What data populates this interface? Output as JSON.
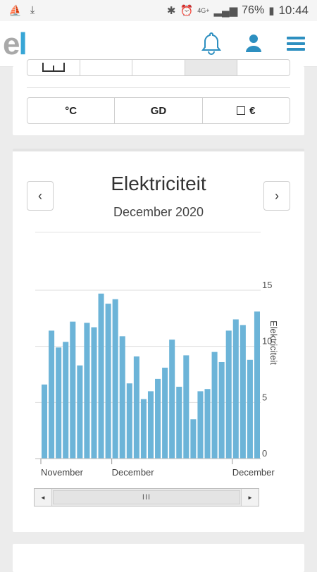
{
  "status": {
    "time": "10:44",
    "battery": "76%",
    "network": "4G+"
  },
  "logo": {
    "e": "e",
    "l": "l"
  },
  "appbar": {
    "icons": [
      "bell-icon",
      "user-icon",
      "menu-icon"
    ]
  },
  "period_buttons": [
    "",
    "",
    "",
    "",
    ""
  ],
  "unit_buttons": {
    "celsius": "°C",
    "gd": "GD",
    "euro": "€"
  },
  "chart_panel": {
    "title": "Elektriciteit",
    "subtitle": "December 2020"
  },
  "chart_data": {
    "type": "bar",
    "ylabel": "Elektriciteit",
    "ylim": [
      0,
      15
    ],
    "yticks": [
      0,
      5,
      10,
      15
    ],
    "xticks": [
      {
        "label": "November",
        "index": 0
      },
      {
        "label": "December",
        "index": 10
      },
      {
        "label": "December",
        "index": 27
      }
    ],
    "values": [
      6.6,
      11.4,
      9.9,
      10.4,
      12.2,
      8.3,
      12.1,
      11.7,
      14.7,
      13.8,
      14.2,
      10.9,
      6.7,
      9.1,
      5.3,
      6.0,
      7.1,
      8.1,
      10.6,
      6.4,
      9.2,
      3.5,
      6.0,
      6.2,
      9.5,
      8.6,
      11.4,
      12.4,
      11.9,
      8.8,
      13.1
    ],
    "color": "#6cb4d8"
  },
  "scrollbar": {
    "left": "◄",
    "right": "►",
    "thumb": "III"
  }
}
